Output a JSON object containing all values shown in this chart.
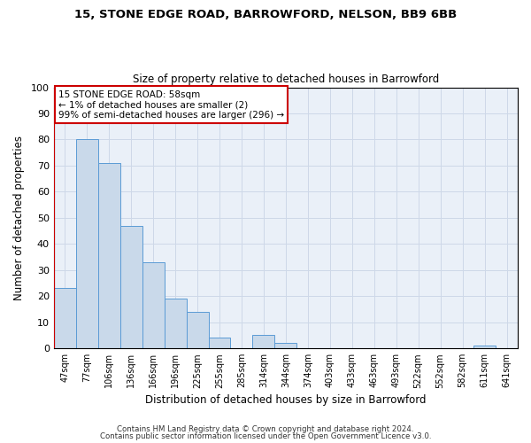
{
  "title1": "15, STONE EDGE ROAD, BARROWFORD, NELSON, BB9 6BB",
  "title2": "Size of property relative to detached houses in Barrowford",
  "xlabel": "Distribution of detached houses by size in Barrowford",
  "ylabel": "Number of detached properties",
  "bar_labels": [
    "47sqm",
    "77sqm",
    "106sqm",
    "136sqm",
    "166sqm",
    "196sqm",
    "225sqm",
    "255sqm",
    "285sqm",
    "314sqm",
    "344sqm",
    "374sqm",
    "403sqm",
    "433sqm",
    "463sqm",
    "493sqm",
    "522sqm",
    "552sqm",
    "582sqm",
    "611sqm",
    "641sqm"
  ],
  "bar_values": [
    23,
    80,
    71,
    47,
    33,
    19,
    14,
    4,
    0,
    5,
    2,
    0,
    0,
    0,
    0,
    0,
    0,
    0,
    0,
    1,
    0
  ],
  "bar_color": "#c9d9ea",
  "bar_edge_color": "#5b9bd5",
  "ylim": [
    0,
    100
  ],
  "yticks": [
    0,
    10,
    20,
    30,
    40,
    50,
    60,
    70,
    80,
    90,
    100
  ],
  "grid_color": "#ced8e8",
  "property_line_color": "#cc0000",
  "annotation_text": "15 STONE EDGE ROAD: 58sqm\n← 1% of detached houses are smaller (2)\n99% of semi-detached houses are larger (296) →",
  "annotation_box_color": "#cc0000",
  "footer1": "Contains HM Land Registry data © Crown copyright and database right 2024.",
  "footer2": "Contains public sector information licensed under the Open Government Licence v3.0.",
  "bg_color": "#ffffff",
  "plot_bg_color": "#eaf0f8"
}
